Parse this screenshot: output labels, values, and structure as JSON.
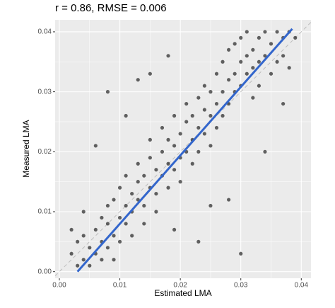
{
  "chart_data": {
    "type": "scatter",
    "title": "r = 0.86, RMSE = 0.006",
    "x_label": "Estimated LMA",
    "y_label": "Measured LMA",
    "xlim": [
      -0.0007,
      0.0416
    ],
    "ylim": [
      -0.0011,
      0.042
    ],
    "xticks": [
      {
        "value": 0,
        "label": "0.00"
      },
      0.01,
      0.02,
      0.03,
      0.04
    ],
    "yticks": [
      {
        "value": 0,
        "label": "0.00"
      },
      0.01,
      0.02,
      0.03,
      0.04
    ],
    "grid": true,
    "point_color": "#000000",
    "fit_line": {
      "x": [
        0.003,
        0.0385
      ],
      "y": [
        0,
        0.0405
      ],
      "color": "#3366cc"
    },
    "reference_line": {
      "slope": 1,
      "intercept": 0,
      "color": "#bdbdbd"
    },
    "series": [
      {
        "name": "LMA",
        "x": [
          0.002,
          0.003,
          0.003,
          0.004,
          0.004,
          0.005,
          0.005,
          0.006,
          0.006,
          0.007,
          0.007,
          0.007,
          0.008,
          0.008,
          0.008,
          0.009,
          0.009,
          0.01,
          0.01,
          0.01,
          0.011,
          0.011,
          0.011,
          0.012,
          0.012,
          0.012,
          0.013,
          0.013,
          0.013,
          0.014,
          0.014,
          0.014,
          0.015,
          0.015,
          0.015,
          0.016,
          0.016,
          0.016,
          0.017,
          0.017,
          0.017,
          0.018,
          0.018,
          0.018,
          0.019,
          0.019,
          0.019,
          0.02,
          0.02,
          0.02,
          0.021,
          0.021,
          0.021,
          0.022,
          0.022,
          0.022,
          0.023,
          0.023,
          0.023,
          0.024,
          0.024,
          0.024,
          0.025,
          0.025,
          0.025,
          0.026,
          0.026,
          0.026,
          0.027,
          0.027,
          0.027,
          0.028,
          0.028,
          0.028,
          0.029,
          0.029,
          0.029,
          0.03,
          0.03,
          0.03,
          0.031,
          0.031,
          0.031,
          0.032,
          0.032,
          0.032,
          0.033,
          0.033,
          0.033,
          0.034,
          0.034,
          0.035,
          0.035,
          0.036,
          0.036,
          0.037,
          0.037,
          0.038,
          0.038,
          0.039,
          0.006,
          0.008,
          0.015,
          0.019,
          0.023,
          0.03,
          0.028,
          0.011,
          0.002,
          0.034,
          0.037,
          0.018,
          0.013,
          0.025,
          0.009,
          0.004
        ],
        "values": [
          0.003,
          0.001,
          0.005,
          0.002,
          0.006,
          0.004,
          0.001,
          0.007,
          0.003,
          0.009,
          0.005,
          0.002,
          0.008,
          0.011,
          0.004,
          0.006,
          0.012,
          0.009,
          0.014,
          0.005,
          0.011,
          0.008,
          0.016,
          0.01,
          0.013,
          0.006,
          0.015,
          0.012,
          0.018,
          0.011,
          0.016,
          0.008,
          0.014,
          0.019,
          0.022,
          0.013,
          0.017,
          0.01,
          0.02,
          0.016,
          0.024,
          0.018,
          0.014,
          0.022,
          0.021,
          0.017,
          0.026,
          0.019,
          0.023,
          0.015,
          0.025,
          0.02,
          0.028,
          0.022,
          0.018,
          0.026,
          0.024,
          0.029,
          0.02,
          0.027,
          0.023,
          0.031,
          0.026,
          0.03,
          0.021,
          0.028,
          0.033,
          0.024,
          0.03,
          0.026,
          0.035,
          0.032,
          0.028,
          0.037,
          0.033,
          0.03,
          0.038,
          0.035,
          0.031,
          0.039,
          0.036,
          0.033,
          0.04,
          0.037,
          0.034,
          0.029,
          0.039,
          0.035,
          0.031,
          0.04,
          0.036,
          0.038,
          0.033,
          0.04,
          0.035,
          0.039,
          0.036,
          0.04,
          0.034,
          0.039,
          0.021,
          0.03,
          0.033,
          0.007,
          0.005,
          0.003,
          0.012,
          0.026,
          0.007,
          0.02,
          0.028,
          0.036,
          0.032,
          0.011,
          0.002,
          0.01
        ]
      }
    ]
  }
}
